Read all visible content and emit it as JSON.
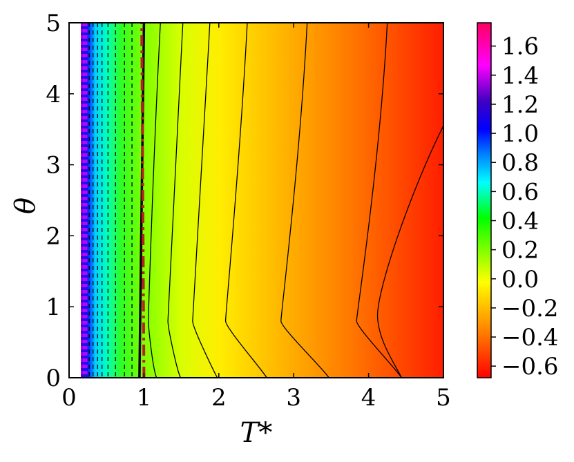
{
  "chart_data": {
    "type": "heatmap",
    "xlabel": "T*",
    "ylabel": "θ",
    "xlim": [
      0,
      5
    ],
    "ylim": [
      0,
      5
    ],
    "x_ticks": [
      "0",
      "1",
      "2",
      "3",
      "4",
      "5"
    ],
    "y_ticks": [
      "0",
      "1",
      "2",
      "3",
      "4",
      "5"
    ],
    "colorbar": {
      "range": [
        -0.68,
        1.76
      ],
      "tick_values": [
        1.6,
        1.4,
        1.2,
        1.0,
        0.8,
        0.6,
        0.4,
        0.2,
        0.0,
        -0.2,
        -0.4,
        -0.6
      ],
      "tick_labels": [
        "1.6",
        "1.4",
        "1.2",
        "1.0",
        "0.8",
        "0.6",
        "0.4",
        "0.2",
        "0.0",
        "−0.2",
        "−0.4",
        "−0.6"
      ],
      "colors": [
        "#ff0000",
        "#ff8000",
        "#ffff00",
        "#80ff00",
        "#00ff00",
        "#00ffff",
        "#0080ff",
        "#0000ff",
        "#4000c0",
        "#ff00ff",
        "#ff0060"
      ]
    },
    "contours": {
      "negative_levels_x_at_theta5": [
        1.22,
        1.52,
        1.88,
        2.38,
        3.18,
        4.25
      ],
      "negative_levels_x_at_theta0": [
        1.17,
        1.49,
        1.98,
        2.64,
        3.47,
        4.44
      ],
      "positive_levels_x": [
        0.27,
        0.32,
        0.38,
        0.44,
        0.52,
        0.62,
        0.74,
        0.84
      ],
      "zero_level_x_at_theta0": 0.94,
      "zero_level_x_at_theta5": 1.0
    },
    "reference_line": {
      "style": "dash-dot",
      "color": "#b22222",
      "x_at_theta0": 1.0,
      "x_at_theta5": 0.97
    }
  }
}
